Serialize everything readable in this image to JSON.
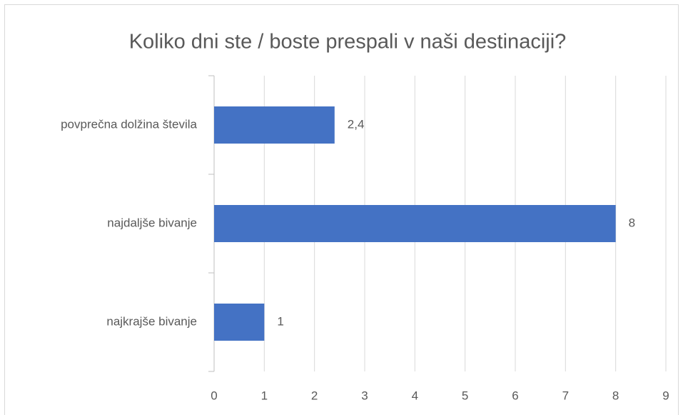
{
  "chart_data": {
    "type": "barh",
    "title": "Koliko dni ste / boste prespali v naši destinaciji?",
    "categories": [
      "povprečna dolžina števila",
      "najdaljše bivanje",
      "najkrajše bivanje"
    ],
    "values": [
      2.4,
      8,
      1
    ],
    "value_labels": [
      "2,4",
      "8",
      "1"
    ],
    "color": "#4472c4",
    "xlim": [
      0,
      9
    ],
    "xticks": [
      0,
      1,
      2,
      3,
      4,
      5,
      6,
      7,
      8,
      9
    ],
    "grid": true
  }
}
